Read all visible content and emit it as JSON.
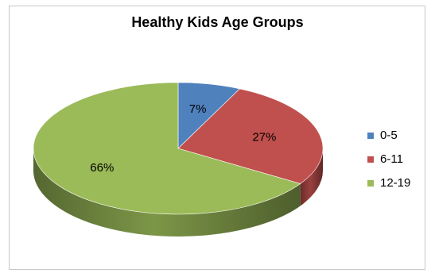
{
  "chart_data": {
    "type": "pie",
    "title": "Healthy Kids Age Groups",
    "categories": [
      "0-5",
      "6-11",
      "12-19"
    ],
    "values": [
      7,
      27,
      66
    ],
    "data_labels": [
      "7%",
      "27%",
      "66%"
    ],
    "colors": [
      "#4f81bd",
      "#c0504d",
      "#9bbb59"
    ],
    "legend_position": "right",
    "style": "3d"
  }
}
